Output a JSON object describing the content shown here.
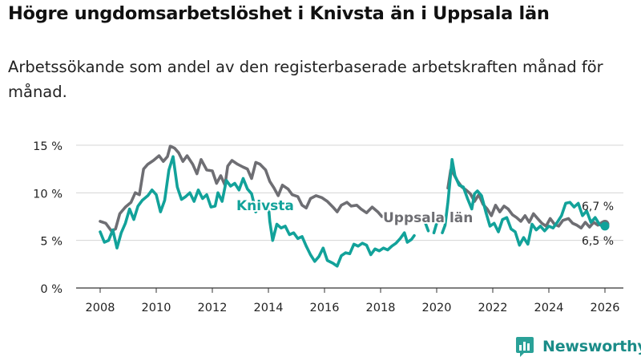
{
  "title": "Högre ungdomsarbetslöshet i Knivsta än i Uppsala län",
  "subtitle": "Arbetssökande som andel av den registerbaserade arbetskraften månad för månad.",
  "brand": {
    "name": "Newsworthy",
    "icon": "newsworthy-logo-icon",
    "color": "#2aa198"
  },
  "chart_data": {
    "type": "line",
    "title": "Högre ungdomsarbetslöshet i Knivsta än i Uppsala län",
    "xlabel": "",
    "ylabel": "",
    "xlim": [
      2007.4,
      2026.8
    ],
    "ylim": [
      0,
      15
    ],
    "y_ticks": [
      0,
      5,
      10,
      15
    ],
    "y_tick_labels": [
      "0 %",
      "5 %",
      "10 %",
      "15 %"
    ],
    "x_ticks": [
      2008,
      2010,
      2012,
      2014,
      2016,
      2018,
      2020,
      2022,
      2024,
      2026
    ],
    "x_tick_labels": [
      "2008",
      "2010",
      "2012",
      "2014",
      "2016",
      "2018",
      "2020",
      "2022",
      "2024",
      "2026"
    ],
    "grid": "horizontal",
    "series": [
      {
        "name": "Uppsala län",
        "label": "Uppsala län",
        "color": "#6e6e73",
        "end_label": "6,7 %",
        "points": [
          [
            2008.0,
            7.0
          ],
          [
            2008.2,
            6.8
          ],
          [
            2008.4,
            6.0
          ],
          [
            2008.55,
            6.2
          ],
          [
            2008.7,
            7.8
          ],
          [
            2008.9,
            8.5
          ],
          [
            2009.1,
            9.0
          ],
          [
            2009.25,
            10.0
          ],
          [
            2009.4,
            9.8
          ],
          [
            2009.55,
            12.5
          ],
          [
            2009.7,
            13.0
          ],
          [
            2009.9,
            13.4
          ],
          [
            2010.1,
            13.9
          ],
          [
            2010.25,
            13.3
          ],
          [
            2010.4,
            13.8
          ],
          [
            2010.5,
            14.9
          ],
          [
            2010.65,
            14.7
          ],
          [
            2010.8,
            14.2
          ],
          [
            2010.95,
            13.3
          ],
          [
            2011.1,
            13.9
          ],
          [
            2011.3,
            13.0
          ],
          [
            2011.45,
            12.0
          ],
          [
            2011.6,
            13.5
          ],
          [
            2011.8,
            12.4
          ],
          [
            2012.0,
            12.3
          ],
          [
            2012.15,
            11.0
          ],
          [
            2012.3,
            11.8
          ],
          [
            2012.45,
            10.8
          ],
          [
            2012.55,
            12.8
          ],
          [
            2012.7,
            13.4
          ],
          [
            2012.9,
            13.0
          ],
          [
            2013.1,
            12.7
          ],
          [
            2013.25,
            12.5
          ],
          [
            2013.4,
            11.5
          ],
          [
            2013.55,
            13.2
          ],
          [
            2013.7,
            13.0
          ],
          [
            2013.9,
            12.4
          ],
          [
            2014.05,
            11.2
          ],
          [
            2014.2,
            10.5
          ],
          [
            2014.35,
            9.7
          ],
          [
            2014.5,
            10.8
          ],
          [
            2014.7,
            10.4
          ],
          [
            2014.85,
            9.8
          ],
          [
            2015.05,
            9.6
          ],
          [
            2015.2,
            8.7
          ],
          [
            2015.35,
            8.4
          ],
          [
            2015.5,
            9.4
          ],
          [
            2015.7,
            9.7
          ],
          [
            2015.9,
            9.5
          ],
          [
            2016.1,
            9.1
          ],
          [
            2016.3,
            8.5
          ],
          [
            2016.45,
            8.0
          ],
          [
            2016.6,
            8.7
          ],
          [
            2016.8,
            9.0
          ],
          [
            2016.95,
            8.6
          ],
          [
            2017.15,
            8.7
          ],
          [
            2017.3,
            8.3
          ],
          [
            2017.5,
            7.9
          ],
          [
            2017.7,
            8.5
          ],
          [
            2017.9,
            8.0
          ],
          [
            2018.05,
            7.5
          ],
          [
            2018.2,
            7.6
          ]
        ],
        "points_late": [
          [
            2020.4,
            10.5
          ],
          [
            2020.5,
            12.4
          ],
          [
            2020.6,
            12.0
          ],
          [
            2020.75,
            11.2
          ],
          [
            2020.9,
            10.6
          ],
          [
            2021.05,
            10.3
          ],
          [
            2021.2,
            9.9
          ],
          [
            2021.35,
            9.1
          ],
          [
            2021.5,
            9.8
          ],
          [
            2021.65,
            8.8
          ],
          [
            2021.8,
            8.3
          ],
          [
            2021.95,
            7.6
          ],
          [
            2022.1,
            8.7
          ],
          [
            2022.25,
            8.0
          ],
          [
            2022.4,
            8.6
          ],
          [
            2022.55,
            8.3
          ],
          [
            2022.7,
            7.7
          ],
          [
            2022.85,
            7.4
          ],
          [
            2023.0,
            7.0
          ],
          [
            2023.15,
            7.6
          ],
          [
            2023.3,
            6.9
          ],
          [
            2023.45,
            7.8
          ],
          [
            2023.6,
            7.3
          ],
          [
            2023.75,
            6.8
          ],
          [
            2023.9,
            6.5
          ],
          [
            2024.05,
            7.3
          ],
          [
            2024.2,
            6.7
          ],
          [
            2024.35,
            6.5
          ],
          [
            2024.5,
            7.1
          ],
          [
            2024.7,
            7.3
          ],
          [
            2024.85,
            6.8
          ],
          [
            2025.0,
            6.6
          ],
          [
            2025.15,
            6.3
          ],
          [
            2025.3,
            6.9
          ],
          [
            2025.45,
            6.4
          ],
          [
            2025.6,
            6.9
          ],
          [
            2025.75,
            6.6
          ],
          [
            2025.9,
            6.9
          ],
          [
            2026.0,
            6.7
          ]
        ]
      },
      {
        "name": "Knivsta",
        "label": "Knivsta",
        "color": "#12a29a",
        "end_label": "6,5 %",
        "points": [
          [
            2008.0,
            5.9
          ],
          [
            2008.15,
            4.8
          ],
          [
            2008.3,
            5.0
          ],
          [
            2008.45,
            6.1
          ],
          [
            2008.6,
            4.2
          ],
          [
            2008.75,
            5.8
          ],
          [
            2008.9,
            6.8
          ],
          [
            2009.05,
            8.3
          ],
          [
            2009.2,
            7.2
          ],
          [
            2009.35,
            8.6
          ],
          [
            2009.5,
            9.2
          ],
          [
            2009.7,
            9.7
          ],
          [
            2009.85,
            10.3
          ],
          [
            2010.0,
            9.8
          ],
          [
            2010.15,
            8.0
          ],
          [
            2010.3,
            9.2
          ],
          [
            2010.45,
            12.4
          ],
          [
            2010.6,
            13.8
          ],
          [
            2010.75,
            10.6
          ],
          [
            2010.9,
            9.3
          ],
          [
            2011.05,
            9.6
          ],
          [
            2011.2,
            10.0
          ],
          [
            2011.35,
            9.1
          ],
          [
            2011.5,
            10.3
          ],
          [
            2011.65,
            9.4
          ],
          [
            2011.8,
            9.8
          ],
          [
            2011.95,
            8.5
          ],
          [
            2012.1,
            8.6
          ],
          [
            2012.2,
            10.0
          ],
          [
            2012.35,
            9.1
          ],
          [
            2012.5,
            11.3
          ],
          [
            2012.65,
            10.7
          ],
          [
            2012.8,
            11.0
          ],
          [
            2012.95,
            10.3
          ],
          [
            2013.1,
            11.5
          ],
          [
            2013.25,
            10.4
          ],
          [
            2013.4,
            9.9
          ],
          [
            2013.5,
            8.7
          ],
          [
            2013.55,
            8.0
          ],
          [
            2013.7,
            8.8
          ],
          [
            2013.85,
            8.5
          ],
          [
            2014.0,
            8.7
          ],
          [
            2014.05,
            7.0
          ],
          [
            2014.15,
            5.0
          ],
          [
            2014.3,
            6.7
          ],
          [
            2014.45,
            6.3
          ],
          [
            2014.6,
            6.5
          ],
          [
            2014.75,
            5.6
          ],
          [
            2014.9,
            5.8
          ],
          [
            2015.05,
            5.2
          ],
          [
            2015.2,
            5.4
          ],
          [
            2015.35,
            4.4
          ],
          [
            2015.5,
            3.5
          ],
          [
            2015.65,
            2.8
          ],
          [
            2015.8,
            3.3
          ],
          [
            2015.95,
            4.2
          ],
          [
            2016.1,
            2.9
          ],
          [
            2016.3,
            2.6
          ],
          [
            2016.45,
            2.3
          ],
          [
            2016.6,
            3.4
          ],
          [
            2016.75,
            3.7
          ],
          [
            2016.9,
            3.6
          ],
          [
            2017.05,
            4.6
          ],
          [
            2017.2,
            4.4
          ],
          [
            2017.35,
            4.7
          ],
          [
            2017.5,
            4.5
          ],
          [
            2017.65,
            3.5
          ],
          [
            2017.8,
            4.1
          ],
          [
            2017.95,
            3.9
          ],
          [
            2018.1,
            4.2
          ],
          [
            2018.25,
            4.0
          ],
          [
            2018.4,
            4.4
          ],
          [
            2018.55,
            4.7
          ],
          [
            2018.7,
            5.2
          ],
          [
            2018.85,
            5.8
          ],
          [
            2018.95,
            4.8
          ],
          [
            2019.1,
            5.1
          ],
          [
            2019.2,
            5.5
          ]
        ],
        "points_mid": [
          [
            2019.6,
            6.8
          ],
          [
            2019.7,
            6.0
          ]
        ],
        "points_mid2": [
          [
            2019.9,
            5.8
          ],
          [
            2020.0,
            6.8
          ]
        ],
        "points_late": [
          [
            2020.2,
            5.8
          ],
          [
            2020.3,
            6.6
          ],
          [
            2020.4,
            9.0
          ],
          [
            2020.5,
            12.0
          ],
          [
            2020.55,
            13.5
          ],
          [
            2020.65,
            11.8
          ],
          [
            2020.8,
            10.8
          ],
          [
            2020.95,
            10.6
          ],
          [
            2021.1,
            9.4
          ],
          [
            2021.25,
            8.3
          ],
          [
            2021.35,
            9.9
          ],
          [
            2021.45,
            10.2
          ],
          [
            2021.6,
            9.7
          ],
          [
            2021.75,
            8.0
          ],
          [
            2021.9,
            6.5
          ],
          [
            2022.05,
            6.8
          ],
          [
            2022.2,
            5.9
          ],
          [
            2022.35,
            7.2
          ],
          [
            2022.5,
            7.4
          ],
          [
            2022.65,
            6.2
          ],
          [
            2022.8,
            5.9
          ],
          [
            2022.95,
            4.5
          ],
          [
            2023.1,
            5.3
          ],
          [
            2023.25,
            4.6
          ],
          [
            2023.4,
            6.7
          ],
          [
            2023.55,
            6.1
          ],
          [
            2023.7,
            6.5
          ],
          [
            2023.85,
            6.0
          ],
          [
            2024.0,
            6.5
          ],
          [
            2024.15,
            6.3
          ],
          [
            2024.3,
            6.9
          ],
          [
            2024.45,
            7.6
          ],
          [
            2024.6,
            8.9
          ],
          [
            2024.75,
            9.0
          ],
          [
            2024.9,
            8.5
          ],
          [
            2025.05,
            8.9
          ],
          [
            2025.2,
            7.6
          ],
          [
            2025.35,
            8.1
          ],
          [
            2025.5,
            6.9
          ],
          [
            2025.65,
            7.4
          ],
          [
            2025.8,
            6.7
          ],
          [
            2025.95,
            6.4
          ],
          [
            2026.0,
            6.5
          ]
        ]
      }
    ]
  }
}
